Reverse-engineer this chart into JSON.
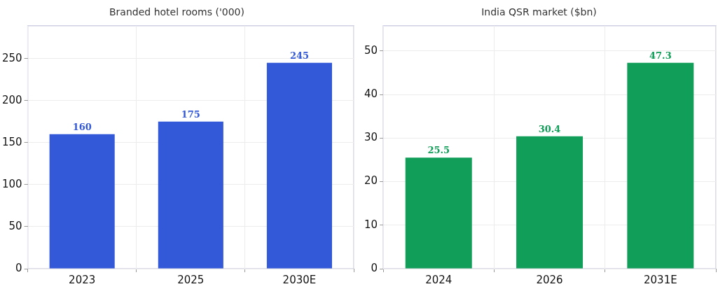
{
  "chart_data": [
    {
      "type": "bar",
      "title": "Branded hotel rooms ('000)",
      "categories": [
        "2023",
        "2025",
        "2030E"
      ],
      "values": [
        160,
        175,
        245
      ],
      "color": "#3358d8",
      "ylim": [
        0,
        289
      ],
      "yticks": [
        0,
        50,
        100,
        150,
        200,
        250
      ],
      "grid": true,
      "legend": false,
      "data_labels": true
    },
    {
      "type": "bar",
      "title": "India QSR market ($bn)",
      "categories": [
        "2024",
        "2026",
        "2031E"
      ],
      "values": [
        25.5,
        30.4,
        47.3
      ],
      "color": "#119e58",
      "ylim": [
        0,
        55.8
      ],
      "yticks": [
        0,
        10,
        20,
        30,
        40,
        50
      ],
      "grid": true,
      "legend": false,
      "data_labels": true
    }
  ]
}
